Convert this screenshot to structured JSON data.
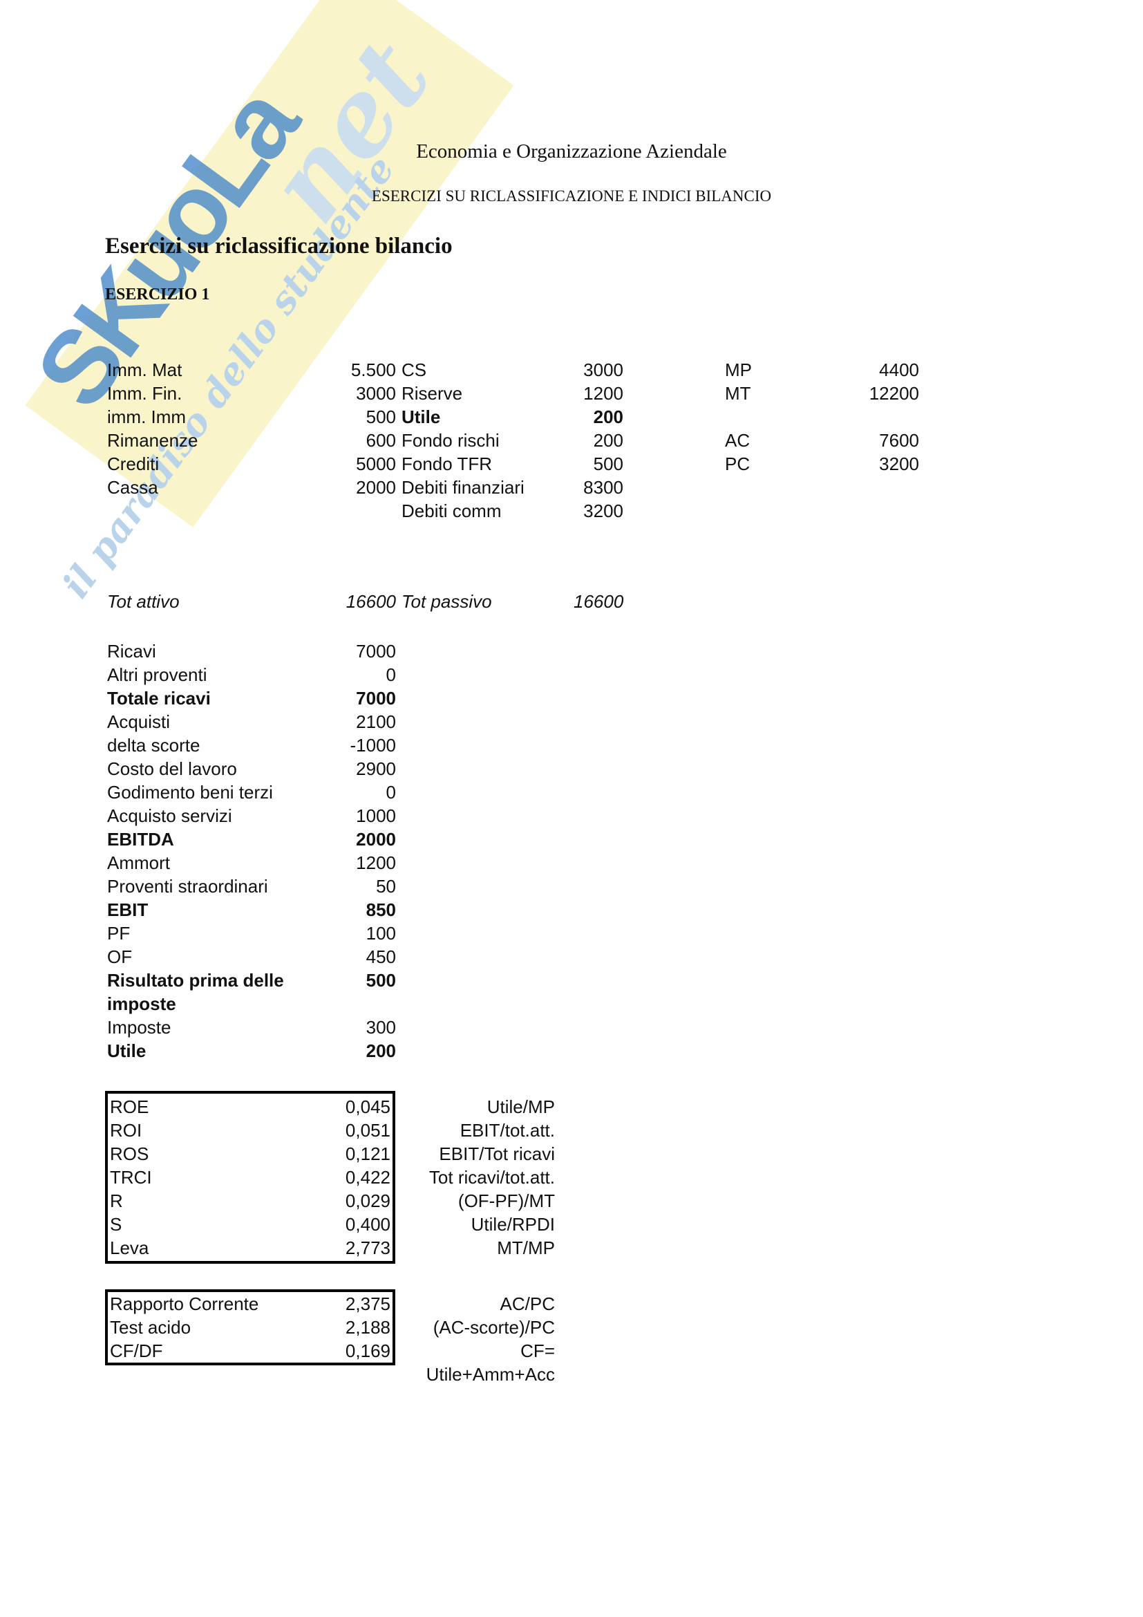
{
  "header": {
    "course_title": "Economia e Organizzazione Aziendale",
    "doc_subtitle": "ESERCIZI SU RICLASSIFICAZIONE E INDICI BILANCIO",
    "section_title": "Esercizi su riclassificazione bilancio",
    "exercise_label": "ESERCIZIO 1"
  },
  "watermark": {
    "brand": "SKuoLa",
    "brand_suffix": "net",
    "tagline": "il paradiso dello studente",
    "band_color": "#FAF4CA",
    "brand_color": "#4D8CCB",
    "suffix_color": "#C9DDF0",
    "tagline_color": "#B9D3EA"
  },
  "balance_sheet": {
    "rows": [
      {
        "a": "Imm. Mat",
        "b": "5.500",
        "c": "CS",
        "d": "3000",
        "e": "MP",
        "f": "4400"
      },
      {
        "a": "Imm. Fin.",
        "b": "3000",
        "c": "Riserve",
        "d": "1200",
        "e": "MT",
        "f": "12200"
      },
      {
        "a": "imm. Imm",
        "b": "500",
        "c": "Utile",
        "d": "200",
        "e": "",
        "f": ""
      },
      {
        "a": "Rimanenze",
        "b": "600",
        "c": "Fondo rischi",
        "d": "200",
        "e": "AC",
        "f": "7600"
      },
      {
        "a": "Crediti",
        "b": "5000",
        "c": "Fondo TFR",
        "d": "500",
        "e": "PC",
        "f": "3200"
      },
      {
        "a": "Cassa",
        "b": "2000",
        "c": "Debiti finanziari",
        "d": "8300",
        "e": "",
        "f": ""
      },
      {
        "a": "",
        "b": "",
        "c": "Debiti comm",
        "d": "3200",
        "e": "",
        "f": ""
      }
    ],
    "totals": {
      "label_attivo": "Tot attivo",
      "value_attivo": "16600",
      "label_passivo": "Tot passivo",
      "value_passivo": "16600"
    }
  },
  "income_statement": {
    "rows": [
      {
        "label": "Ricavi",
        "value": "7000"
      },
      {
        "label": "Altri proventi",
        "value": "0"
      },
      {
        "label": "Totale ricavi",
        "value": "7000"
      },
      {
        "label": "Acquisti",
        "value": "2100"
      },
      {
        "label": "delta scorte",
        "value": "-1000"
      },
      {
        "label": "Costo del lavoro",
        "value": "2900"
      },
      {
        "label": "Godimento beni terzi",
        "value": "0"
      },
      {
        "label": "Acquisto servizi",
        "value": "1000"
      },
      {
        "label": "EBITDA",
        "value": "2000"
      },
      {
        "label": "Ammort",
        "value": "1200"
      },
      {
        "label": "Proventi straordinari",
        "value": "50"
      },
      {
        "label": "EBIT",
        "value": "850"
      },
      {
        "label": "PF",
        "value": "100"
      },
      {
        "label": "OF",
        "value": "450"
      },
      {
        "label": "Risultato prima delle",
        "value": "500"
      },
      {
        "label": "imposte",
        "value": ""
      },
      {
        "label": "Imposte",
        "value": "300"
      },
      {
        "label": "Utile",
        "value": "200"
      }
    ]
  },
  "ratio_table": {
    "rows": [
      {
        "label": "ROE",
        "value": "0,045",
        "formula": "Utile/MP"
      },
      {
        "label": "ROI",
        "value": "0,051",
        "formula": "EBIT/tot.att."
      },
      {
        "label": "ROS",
        "value": "0,121",
        "formula": "EBIT/Tot ricavi"
      },
      {
        "label": "TRCI",
        "value": "0,422",
        "formula": "Tot ricavi/tot.att."
      },
      {
        "label": "R",
        "value": "0,029",
        "formula": "(OF-PF)/MT"
      },
      {
        "label": "S",
        "value": "0,400",
        "formula": "Utile/RPDI"
      },
      {
        "label": "Leva",
        "value": "2,773",
        "formula": "MT/MP"
      }
    ]
  },
  "liquidity_table": {
    "rows": [
      {
        "label": "Rapporto Corrente",
        "value": "2,375",
        "formula": "AC/PC"
      },
      {
        "label": "Test acido",
        "value": "2,188",
        "formula": "(AC-scorte)/PC"
      },
      {
        "label": "CF/DF",
        "value": "0,169",
        "formula": "CF= Utile+Amm+Acc"
      }
    ]
  }
}
